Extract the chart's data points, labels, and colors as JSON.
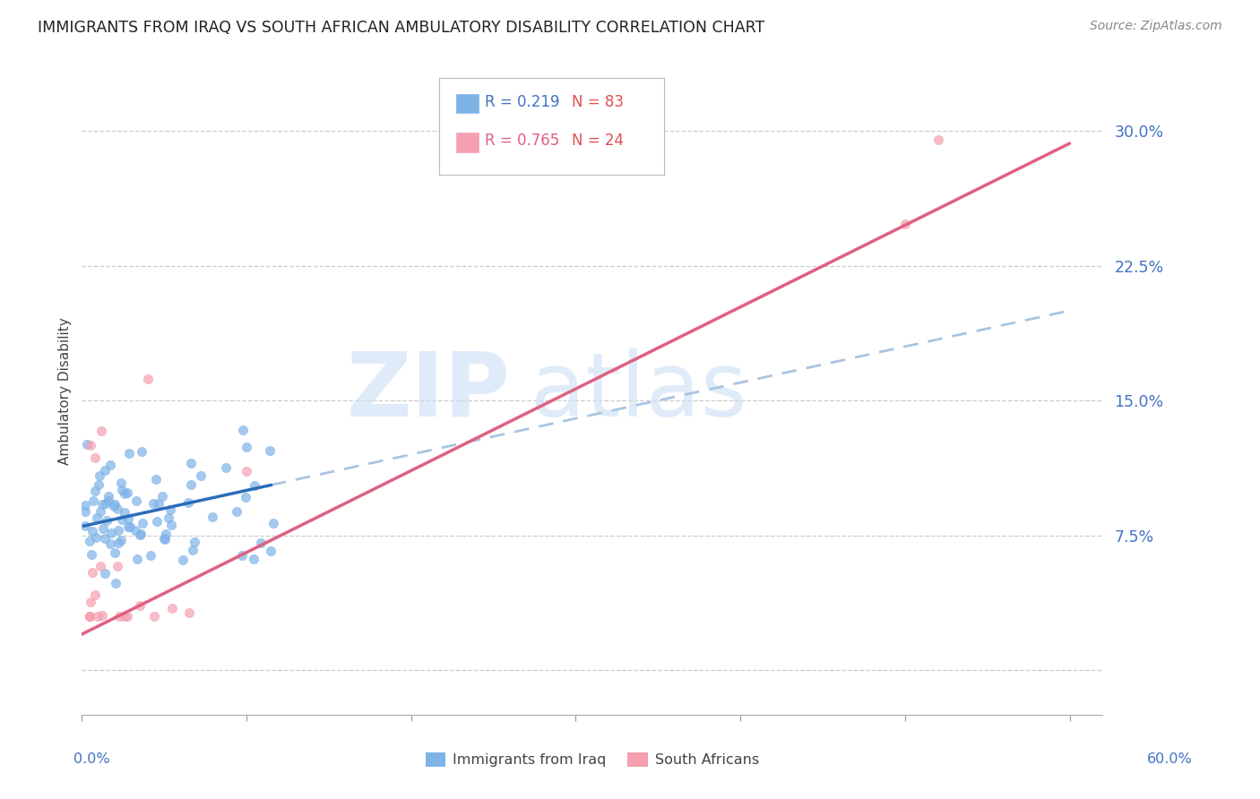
{
  "title": "IMMIGRANTS FROM IRAQ VS SOUTH AFRICAN AMBULATORY DISABILITY CORRELATION CHART",
  "source": "Source: ZipAtlas.com",
  "ylabel": "Ambulatory Disability",
  "xlim": [
    0.0,
    0.62
  ],
  "ylim": [
    -0.025,
    0.335
  ],
  "legend_iraq": "Immigrants from Iraq",
  "legend_sa": "South Africans",
  "R_iraq": "0.219",
  "N_iraq": "83",
  "R_sa": "0.765",
  "N_sa": "24",
  "color_iraq": "#7eb3e8",
  "color_sa": "#f4a0b0",
  "color_iraq_line": "#2b6cb8",
  "color_sa_line": "#e06080",
  "color_ci": "#aac4e0",
  "watermark_zip": "ZIP",
  "watermark_atlas": "atlas",
  "yticks": [
    0.0,
    0.075,
    0.15,
    0.225,
    0.3
  ],
  "ytick_labels": [
    "",
    "7.5%",
    "15.0%",
    "22.5%",
    "30.0%"
  ],
  "iraq_line_x_start": 0.0,
  "iraq_line_x_solid_end": 0.115,
  "iraq_line_x_dash_end": 0.6,
  "iraq_line_y_at0": 0.08,
  "iraq_line_slope": 0.2,
  "sa_line_x_start": 0.0,
  "sa_line_x_end": 0.6,
  "sa_line_y_at0": 0.02,
  "sa_line_slope": 0.455
}
